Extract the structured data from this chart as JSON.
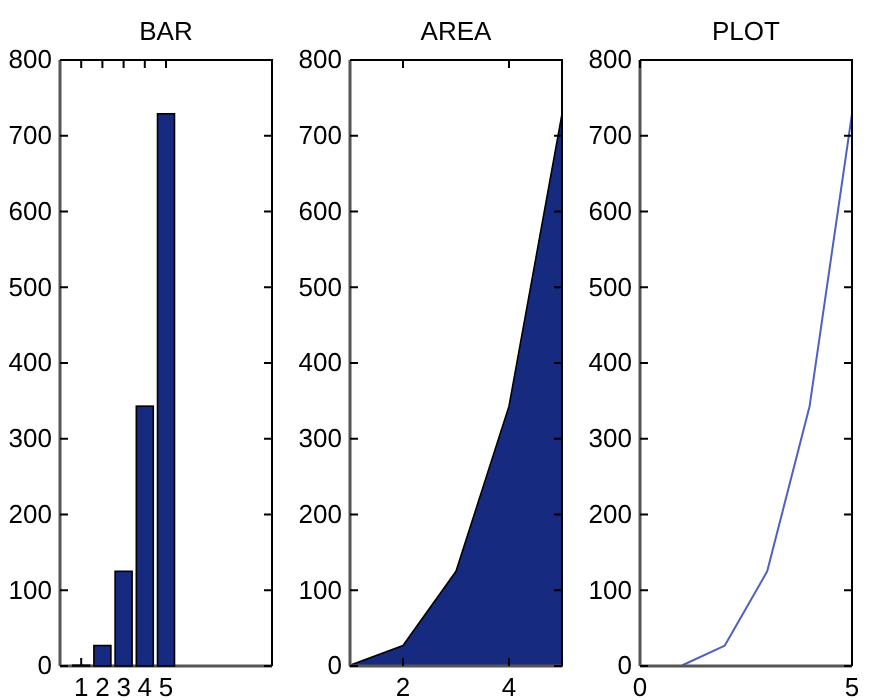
{
  "chart_data": [
    {
      "type": "bar",
      "title": "BAR",
      "x": [
        1,
        2,
        3,
        4,
        5
      ],
      "values": [
        1,
        27,
        125,
        343,
        729
      ],
      "color": "#162a80",
      "xlim": [
        0,
        10
      ],
      "xticks": [
        1,
        2,
        3,
        4,
        5
      ],
      "ylim": [
        0,
        800
      ],
      "yticks": [
        0,
        100,
        200,
        300,
        400,
        500,
        600,
        700,
        800
      ]
    },
    {
      "type": "area",
      "title": "AREA",
      "x": [
        1,
        2,
        3,
        4,
        5
      ],
      "values": [
        1,
        27,
        125,
        343,
        729
      ],
      "color": "#162a80",
      "xlim": [
        1,
        5
      ],
      "xticks": [
        2,
        4
      ],
      "ylim": [
        0,
        800
      ],
      "yticks": [
        0,
        100,
        200,
        300,
        400,
        500,
        600,
        700,
        800
      ]
    },
    {
      "type": "line",
      "title": "PLOT",
      "x": [
        1,
        2,
        3,
        4,
        5
      ],
      "values": [
        1,
        27,
        125,
        343,
        729
      ],
      "color": "#5060c0",
      "xlim": [
        0,
        5
      ],
      "xticks": [
        0,
        5
      ],
      "ylim": [
        0,
        800
      ],
      "yticks": [
        0,
        100,
        200,
        300,
        400,
        500,
        600,
        700,
        800
      ]
    }
  ]
}
